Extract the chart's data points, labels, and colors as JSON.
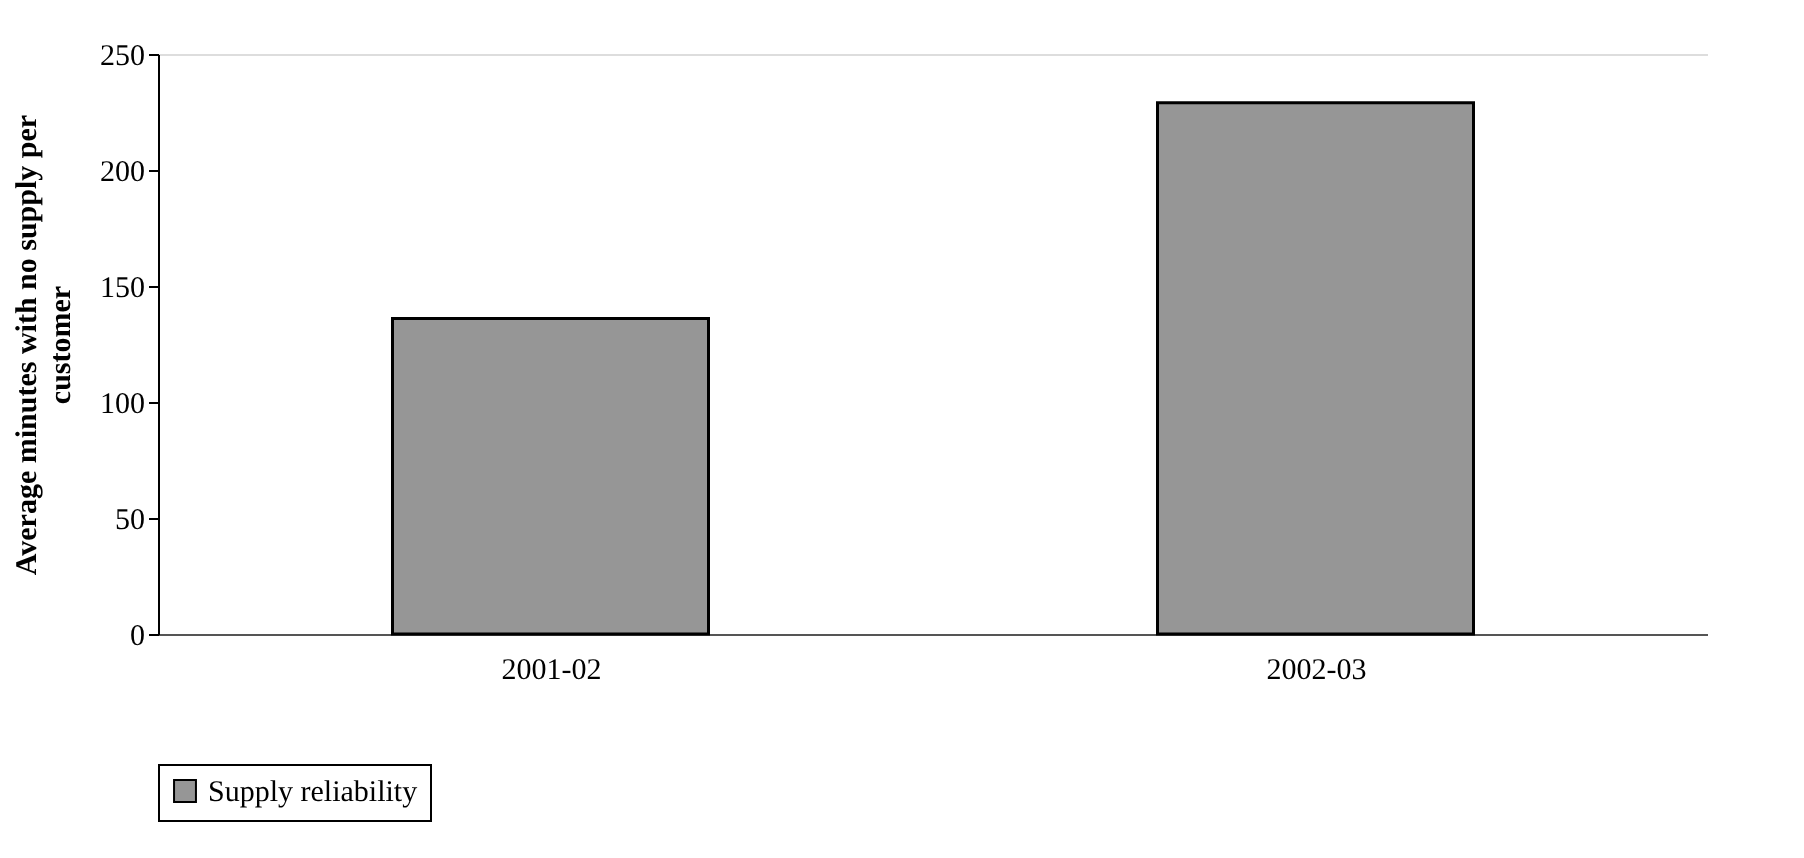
{
  "chart_data": {
    "type": "bar",
    "categories": [
      "2001-02",
      "2002-03"
    ],
    "series": [
      {
        "name": "Supply reliability",
        "color": "#969696",
        "values": [
          136,
          229
        ]
      }
    ],
    "ylabel": "Average minutes with no supply per customer",
    "ylim": [
      0,
      250
    ],
    "yticks": [
      0,
      50,
      100,
      150,
      200,
      250
    ],
    "grid": false,
    "legend": "bottom"
  }
}
